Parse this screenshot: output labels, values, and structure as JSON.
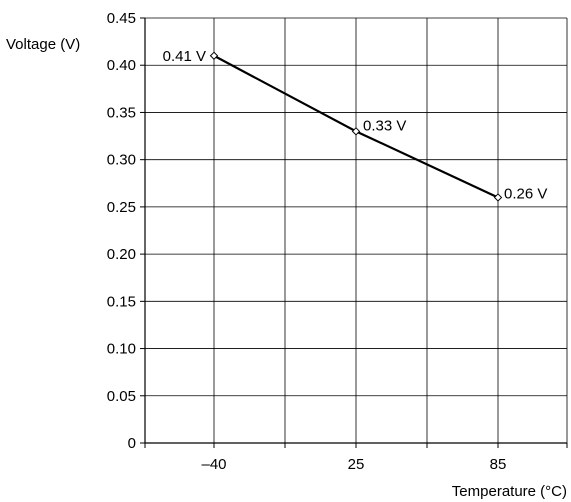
{
  "chart_data": {
    "type": "line",
    "title": "",
    "xlabel": "Temperature (°C)",
    "ylabel": "Voltage (V)",
    "categories": [
      "–40",
      "25",
      "85"
    ],
    "series": [
      {
        "values": [
          0.41,
          0.33,
          0.26
        ],
        "point_labels": [
          "0.41 V",
          "0.33 V",
          "0.26 V"
        ]
      }
    ],
    "ylim": [
      0,
      0.45
    ],
    "y_ticks": [
      "0",
      "0.05",
      "0.10",
      "0.15",
      "0.20",
      "0.25",
      "0.30",
      "0.35",
      "0.40",
      "0.45"
    ],
    "grid": true,
    "legend": "none",
    "colors": {
      "line": "#000000",
      "grid": "#000000",
      "marker_fill": "#ffffff"
    },
    "marker": "diamond"
  }
}
